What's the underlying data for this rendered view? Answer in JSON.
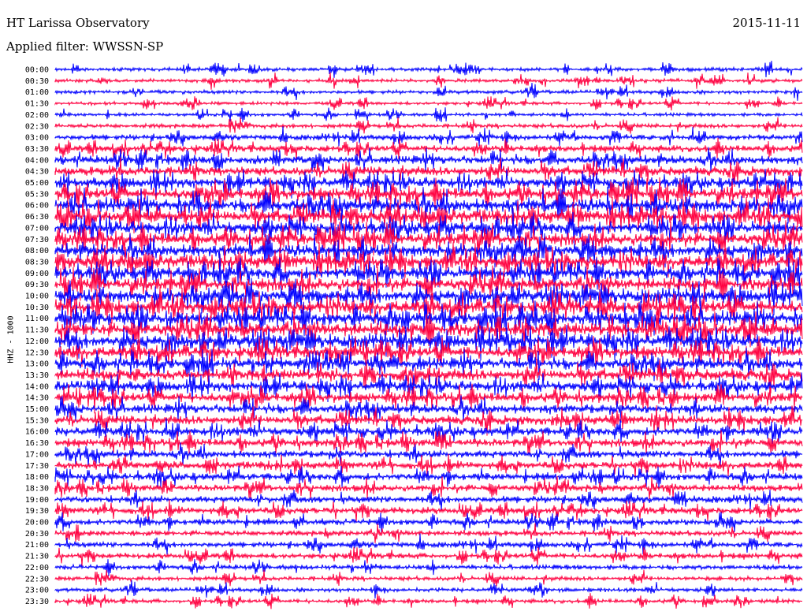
{
  "header": {
    "title": "HT Larissa Observatory",
    "date": "2015-11-11",
    "filter": "Applied filter: WWSSN-SP"
  },
  "chart_data": {
    "type": "line",
    "title": "HT Larissa Observatory",
    "ylabel": "HHZ - 1000",
    "colors": {
      "even": "#0000ff",
      "odd": "#ff0040"
    },
    "rows": [
      {
        "time": "00:00",
        "level": 0.15
      },
      {
        "time": "00:30",
        "level": 0.15
      },
      {
        "time": "01:00",
        "level": 0.15
      },
      {
        "time": "01:30",
        "level": 0.12
      },
      {
        "time": "02:00",
        "level": 0.12
      },
      {
        "time": "02:30",
        "level": 0.2
      },
      {
        "time": "03:00",
        "level": 0.3
      },
      {
        "time": "03:30",
        "level": 0.4
      },
      {
        "time": "04:00",
        "level": 0.55
      },
      {
        "time": "04:30",
        "level": 0.6
      },
      {
        "time": "05:00",
        "level": 0.7
      },
      {
        "time": "05:30",
        "level": 0.85
      },
      {
        "time": "06:00",
        "level": 1.0
      },
      {
        "time": "06:30",
        "level": 0.95
      },
      {
        "time": "07:00",
        "level": 0.9
      },
      {
        "time": "07:30",
        "level": 0.9
      },
      {
        "time": "08:00",
        "level": 0.9
      },
      {
        "time": "08:30",
        "level": 0.95
      },
      {
        "time": "09:00",
        "level": 0.9
      },
      {
        "time": "09:30",
        "level": 0.9
      },
      {
        "time": "10:00",
        "level": 0.95
      },
      {
        "time": "10:30",
        "level": 1.0
      },
      {
        "time": "11:00",
        "level": 1.0
      },
      {
        "time": "11:30",
        "level": 1.0
      },
      {
        "time": "12:00",
        "level": 0.95
      },
      {
        "time": "12:30",
        "level": 0.85
      },
      {
        "time": "13:00",
        "level": 0.8
      },
      {
        "time": "13:30",
        "level": 0.8
      },
      {
        "time": "14:00",
        "level": 0.7
      },
      {
        "time": "14:30",
        "level": 0.65
      },
      {
        "time": "15:00",
        "level": 0.6
      },
      {
        "time": "15:30",
        "level": 0.6
      },
      {
        "time": "16:00",
        "level": 0.55
      },
      {
        "time": "16:30",
        "level": 0.5
      },
      {
        "time": "17:00",
        "level": 0.45
      },
      {
        "time": "17:30",
        "level": 0.45
      },
      {
        "time": "18:00",
        "level": 0.45
      },
      {
        "time": "18:30",
        "level": 0.4
      },
      {
        "time": "19:00",
        "level": 0.4
      },
      {
        "time": "19:30",
        "level": 0.4
      },
      {
        "time": "20:00",
        "level": 0.35
      },
      {
        "time": "20:30",
        "level": 0.3
      },
      {
        "time": "21:00",
        "level": 0.3
      },
      {
        "time": "21:30",
        "level": 0.3
      },
      {
        "time": "22:00",
        "level": 0.25
      },
      {
        "time": "22:30",
        "level": 0.2
      },
      {
        "time": "23:00",
        "level": 0.18
      },
      {
        "time": "23:30",
        "level": 0.18
      }
    ]
  }
}
